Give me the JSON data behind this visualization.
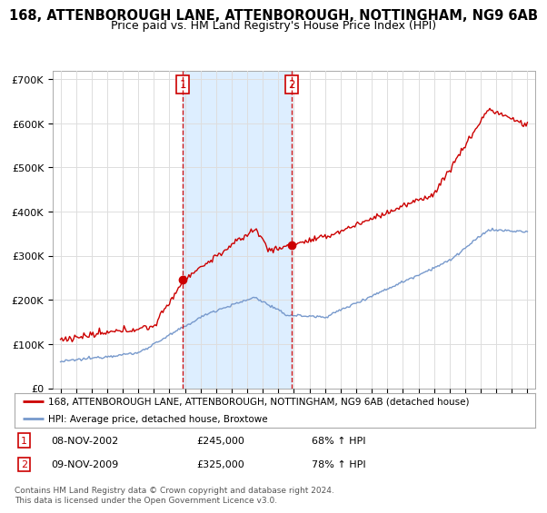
{
  "title1": "168, ATTENBOROUGH LANE, ATTENBOROUGH, NOTTINGHAM, NG9 6AB",
  "title2": "Price paid vs. HM Land Registry's House Price Index (HPI)",
  "legend_line1": "168, ATTENBOROUGH LANE, ATTENBOROUGH, NOTTINGHAM, NG9 6AB (detached house)",
  "legend_line2": "HPI: Average price, detached house, Broxtowe",
  "marker1_date": "08-NOV-2002",
  "marker1_price": "£245,000",
  "marker1_hpi": "68% ↑ HPI",
  "marker1_x": 2002.86,
  "marker1_y": 245000,
  "marker2_date": "09-NOV-2009",
  "marker2_price": "£325,000",
  "marker2_hpi": "78% ↑ HPI",
  "marker2_x": 2009.86,
  "marker2_y": 325000,
  "ylim": [
    0,
    720000
  ],
  "xlim_start": 1994.5,
  "xlim_end": 2025.5,
  "bg_color": "#ffffff",
  "plot_bg_color": "#ffffff",
  "shade_color": "#ddeeff",
  "red_line_color": "#cc0000",
  "blue_line_color": "#7799cc",
  "grid_color": "#dddddd",
  "footer_text": "Contains HM Land Registry data © Crown copyright and database right 2024.\nThis data is licensed under the Open Government Licence v3.0."
}
